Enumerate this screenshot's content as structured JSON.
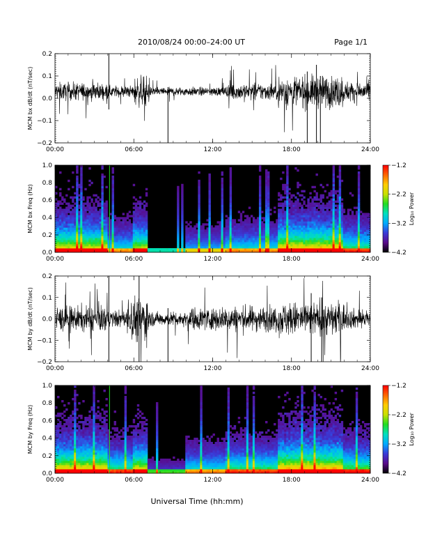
{
  "header": {
    "title": "2010/08/24  00:00–24:00 UT",
    "page": "Page 1/1"
  },
  "xlabel": "Universal Time (hh:mm)",
  "xticks": [
    "00:00",
    "06:00",
    "12:00",
    "18:00",
    "24:00"
  ],
  "colors": {
    "trace": "#000000",
    "spectrogram_background": "#000000",
    "colormap": [
      "#000000",
      "#5a0a8a",
      "#3a3ad8",
      "#00aaff",
      "#00e0c0",
      "#22dd22",
      "#c8e000",
      "#ffcc00",
      "#ff6600",
      "#ff0000"
    ]
  },
  "chart_data": [
    {
      "type": "line",
      "ylabel": "MCM bx dB/dt (nT/sec)",
      "xlim_hours": [
        0,
        24
      ],
      "ylim": [
        -0.2,
        0.2
      ],
      "yticks": [
        "0.2",
        "0.1",
        "0.0",
        "−0.1",
        "−0.2"
      ],
      "ytick_values": [
        0.2,
        0.1,
        0.0,
        -0.1,
        -0.2
      ],
      "grid": false,
      "baseline": 0.03,
      "activity": [
        {
          "start_hour": 0,
          "end_hour": 4,
          "amplitude": 0.06
        },
        {
          "start_hour": 4,
          "end_hour": 6,
          "amplitude": 0.04
        },
        {
          "start_hour": 6,
          "end_hour": 7.2,
          "amplitude": 0.1
        },
        {
          "start_hour": 7.2,
          "end_hour": 13,
          "amplitude": 0.03
        },
        {
          "start_hour": 13,
          "end_hour": 17,
          "amplitude": 0.06
        },
        {
          "start_hour": 17,
          "end_hour": 22,
          "amplitude": 0.11
        },
        {
          "start_hour": 22,
          "end_hour": 24,
          "amplitude": 0.07
        }
      ],
      "spikes": [
        {
          "hour": 4.1,
          "low": -0.05,
          "high": 0.22
        },
        {
          "hour": 8.6,
          "low": -0.22,
          "high": 0.05
        },
        {
          "hour": 19.2,
          "low": -0.22,
          "high": 0.12
        },
        {
          "hour": 19.9,
          "low": -0.22,
          "high": 0.15
        },
        {
          "hour": 20.2,
          "low": -0.22,
          "high": 0.1
        }
      ]
    },
    {
      "type": "heatmap",
      "ylabel": "MCM bx Freq (Hz)",
      "xlim_hours": [
        0,
        24
      ],
      "ylim": [
        0.0,
        1.0
      ],
      "yticks": [
        "1.0",
        "0.8",
        "0.6",
        "0.4",
        "0.2",
        "0.0"
      ],
      "ytick_values": [
        1.0,
        0.8,
        0.6,
        0.4,
        0.2,
        0.0
      ],
      "colorbar": {
        "label": "Log₁₀ Power",
        "range": [
          -4.2,
          -1.2
        ],
        "ticks": [
          "−1.2",
          "−2.2",
          "−3.2",
          "−4.2"
        ],
        "tick_values": [
          -1.2,
          -2.2,
          -3.2,
          -4.2
        ]
      },
      "activity": [
        {
          "start_hour": 0,
          "end_hour": 4,
          "level": 0.75
        },
        {
          "start_hour": 4,
          "end_hour": 6,
          "level": 0.45
        },
        {
          "start_hour": 6,
          "end_hour": 7,
          "level": 0.7
        },
        {
          "start_hour": 7,
          "end_hour": 10,
          "level": 0.1
        },
        {
          "start_hour": 10,
          "end_hour": 13,
          "level": 0.35
        },
        {
          "start_hour": 13,
          "end_hour": 17,
          "level": 0.45
        },
        {
          "start_hour": 17,
          "end_hour": 22,
          "level": 0.8
        },
        {
          "start_hour": 22,
          "end_hour": 24,
          "level": 0.55
        }
      ],
      "lines": [
        {
          "hour": 4.15,
          "color": "#22dd22"
        }
      ]
    },
    {
      "type": "line",
      "ylabel": "MCM by dB/dt (nT/sec)",
      "xlim_hours": [
        0,
        24
      ],
      "ylim": [
        -0.2,
        0.2
      ],
      "yticks": [
        "0.2",
        "0.1",
        "0.0",
        "−0.1",
        "−0.2"
      ],
      "ytick_values": [
        0.2,
        0.1,
        0.0,
        -0.1,
        -0.2
      ],
      "grid": false,
      "baseline": 0.0,
      "activity": [
        {
          "start_hour": 0,
          "end_hour": 4,
          "amplitude": 0.09
        },
        {
          "start_hour": 4,
          "end_hour": 5.5,
          "amplitude": 0.06
        },
        {
          "start_hour": 5.5,
          "end_hour": 7.2,
          "amplitude": 0.16
        },
        {
          "start_hour": 7.2,
          "end_hour": 10,
          "amplitude": 0.05
        },
        {
          "start_hour": 10,
          "end_hour": 13,
          "amplitude": 0.08
        },
        {
          "start_hour": 13,
          "end_hour": 17,
          "amplitude": 0.09
        },
        {
          "start_hour": 17,
          "end_hour": 22,
          "amplitude": 0.12
        },
        {
          "start_hour": 22,
          "end_hour": 24,
          "amplitude": 0.07
        }
      ],
      "spikes": [
        {
          "hour": 4.1,
          "low": -0.22,
          "high": 0.22
        },
        {
          "hour": 6.4,
          "low": -0.2,
          "high": 0.22
        },
        {
          "hour": 8.6,
          "low": -0.2,
          "high": 0.05
        },
        {
          "hour": 19.5,
          "low": -0.2,
          "high": 0.12
        },
        {
          "hour": 20.3,
          "low": -0.2,
          "high": 0.1
        }
      ]
    },
    {
      "type": "heatmap",
      "ylabel": "MCM by Freq (Hz)",
      "xlim_hours": [
        0,
        24
      ],
      "ylim": [
        0.0,
        1.0
      ],
      "yticks": [
        "1.0",
        "0.8",
        "0.6",
        "0.4",
        "0.2",
        "0.0"
      ],
      "ytick_values": [
        1.0,
        0.8,
        0.6,
        0.4,
        0.2,
        0.0
      ],
      "colorbar": {
        "label": "Log₁₀ Power",
        "range": [
          -4.2,
          -1.2
        ],
        "ticks": [
          "−1.2",
          "−2.2",
          "−3.2",
          "−4.2"
        ],
        "tick_values": [
          -1.2,
          -2.2,
          -3.2,
          -4.2
        ]
      },
      "activity": [
        {
          "start_hour": 0,
          "end_hour": 4,
          "level": 0.8
        },
        {
          "start_hour": 4,
          "end_hour": 6,
          "level": 0.55
        },
        {
          "start_hour": 6,
          "end_hour": 7,
          "level": 0.75
        },
        {
          "start_hour": 7,
          "end_hour": 10,
          "level": 0.2
        },
        {
          "start_hour": 10,
          "end_hour": 13,
          "level": 0.45
        },
        {
          "start_hour": 13,
          "end_hour": 17,
          "level": 0.55
        },
        {
          "start_hour": 17,
          "end_hour": 22,
          "level": 0.85
        },
        {
          "start_hour": 22,
          "end_hour": 24,
          "level": 0.6
        }
      ],
      "lines": [
        {
          "hour": 4.15,
          "color": "#22dd22"
        }
      ]
    }
  ]
}
